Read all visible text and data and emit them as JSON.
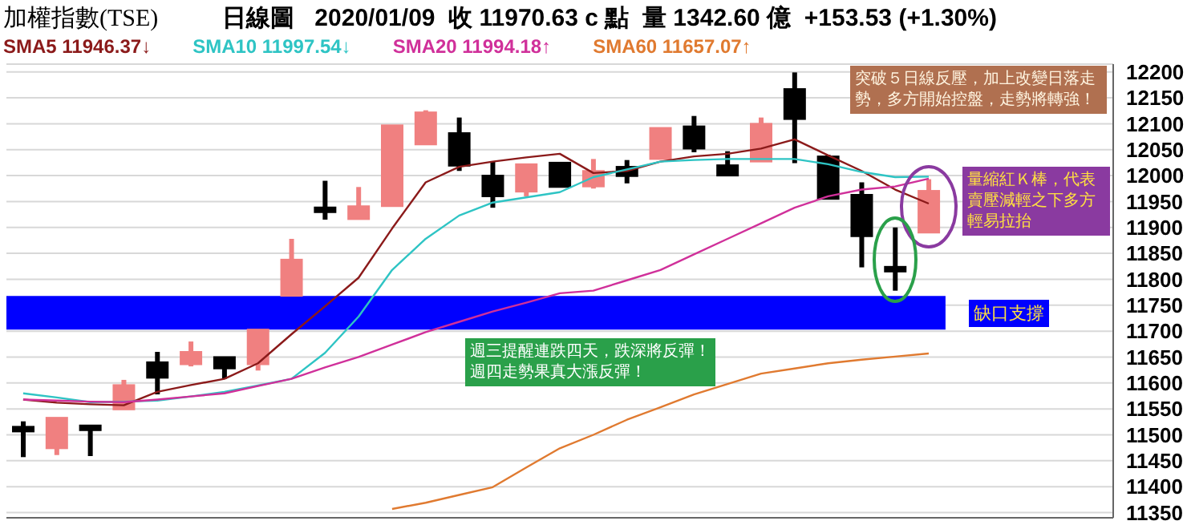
{
  "chart_data": {
    "type": "candlestick",
    "title": "加權指數(TSE)",
    "subtitle": "日線圖   2020/01/09  收 11970.63 c 點  量 1342.60 億  +153.53 (+1.30%)",
    "categories": [
      null,
      null,
      null,
      null,
      null,
      null,
      null,
      null,
      null,
      null,
      null,
      null,
      null,
      null,
      null,
      null,
      null,
      null,
      null,
      null,
      null,
      null,
      null,
      null,
      null,
      null,
      null,
      null
    ],
    "ohlc": [
      [
        11512,
        11526,
        11457,
        11510
      ],
      [
        11474,
        11533,
        11461,
        11533
      ],
      [
        11515,
        11515,
        11459,
        11512
      ],
      [
        11549,
        11606,
        11549,
        11596
      ],
      [
        11640,
        11660,
        11578,
        11610
      ],
      [
        11636,
        11680,
        11632,
        11660
      ],
      [
        11650,
        11650,
        11608,
        11628
      ],
      [
        11636,
        11703,
        11624,
        11703
      ],
      [
        11768,
        11878,
        11768,
        11838
      ],
      [
        11936,
        11990,
        11915,
        11932
      ],
      [
        11916,
        11978,
        11916,
        11941
      ],
      [
        11941,
        12097,
        11941,
        12097
      ],
      [
        12060,
        12126,
        12060,
        12122
      ],
      [
        12082,
        12112,
        12009,
        12019
      ],
      [
        12000,
        12027,
        11938,
        11960
      ],
      [
        11969,
        12022,
        11960,
        12022
      ],
      [
        12025,
        12025,
        11978,
        11978
      ],
      [
        11979,
        12032,
        11975,
        12009
      ],
      [
        12017,
        12030,
        11985,
        11999
      ],
      [
        12032,
        12092,
        12032,
        12092
      ],
      [
        12095,
        12115,
        12045,
        12052
      ],
      [
        12020,
        12047,
        12000,
        12000
      ],
      [
        12027,
        12112,
        12027,
        12100
      ],
      [
        12167,
        12199,
        12024,
        12109
      ],
      [
        12037,
        12040,
        11955,
        11955
      ],
      [
        11963,
        11987,
        11823,
        11883
      ],
      [
        11822,
        11900,
        11778,
        11817
      ],
      [
        11890,
        11993,
        11890,
        11970.63
      ]
    ],
    "colors": [
      "#000000",
      "#f08080",
      "#000000",
      "#f08080",
      "#000000",
      "#f08080",
      "#000000",
      "#f08080",
      "#f08080",
      "#000000",
      "#f08080",
      "#f08080",
      "#f08080",
      "#000000",
      "#000000",
      "#f08080",
      "#000000",
      "#f08080",
      "#000000",
      "#f08080",
      "#000000",
      "#000000",
      "#f08080",
      "#000000",
      "#000000",
      "#000000",
      "#000000",
      "#f08080"
    ],
    "series": [
      {
        "name": "SMA5 11946.37↓",
        "type": "line",
        "color": "#8b1a1a",
        "values": [
          11568,
          11562,
          11559,
          11557,
          11583,
          11596,
          11608,
          11638,
          11694,
          11748,
          11803,
          11898,
          11987,
          12017,
          12027,
          12035,
          12042,
          12005,
          12009,
          12027,
          12037,
          12042,
          12052,
          12070,
          12039,
          12009,
          11973,
          11946
        ]
      },
      {
        "name": "SMA10 11997.54↓",
        "type": "line",
        "color": "#2ec4c4",
        "values": [
          11580,
          11572,
          11563,
          11564,
          11566,
          11574,
          11583,
          11595,
          11608,
          11658,
          11728,
          11818,
          11878,
          11923,
          11948,
          11958,
          11968,
          11997,
          12012,
          12027,
          12030,
          12032,
          12032,
          12032,
          12022,
          12007,
          11997,
          11998
        ]
      },
      {
        "name": "SMA20 11994.18↑",
        "type": "line",
        "color": "#d0309a",
        "values": [
          11568,
          11566,
          11564,
          11563,
          11568,
          11574,
          11580,
          11594,
          11608,
          11630,
          11650,
          11674,
          11698,
          11718,
          11738,
          11755,
          11773,
          11778,
          11798,
          11818,
          11848,
          11878,
          11908,
          11938,
          11960,
          11973,
          11979,
          11994
        ]
      },
      {
        "name": "SMA60 11657.07↑",
        "type": "line",
        "color": "#e07a30",
        "values": [
          null,
          null,
          null,
          null,
          null,
          null,
          null,
          null,
          null,
          null,
          null,
          11357,
          11369,
          11384,
          11399,
          11437,
          11474,
          11500,
          11529,
          11553,
          11578,
          11598,
          11618,
          11628,
          11638,
          11645,
          11651,
          11657
        ]
      }
    ],
    "bands": [
      {
        "axis": "y",
        "from": 11703,
        "to": 11768,
        "label": "缺口支撐",
        "color": "#0000ff"
      }
    ],
    "annotations": [
      "突破５日線反壓，加上改變日落走勢，多方開始控盤，走勢將轉強！",
      "量縮紅Ｋ棒，代表賣壓減輕之下多方輕易拉抬",
      "週三提醒連跌四天，跌深將反彈！週四走勢果真大漲反彈！"
    ],
    "ylim": [
      11340,
      12215
    ],
    "yticks": [
      11350,
      11400,
      11450,
      11500,
      11550,
      11600,
      11650,
      11700,
      11750,
      11800,
      11850,
      11900,
      11950,
      12000,
      12050,
      12100,
      12150,
      12200
    ],
    "grid": "y",
    "legend": "top",
    "tick_labels": "y"
  }
}
